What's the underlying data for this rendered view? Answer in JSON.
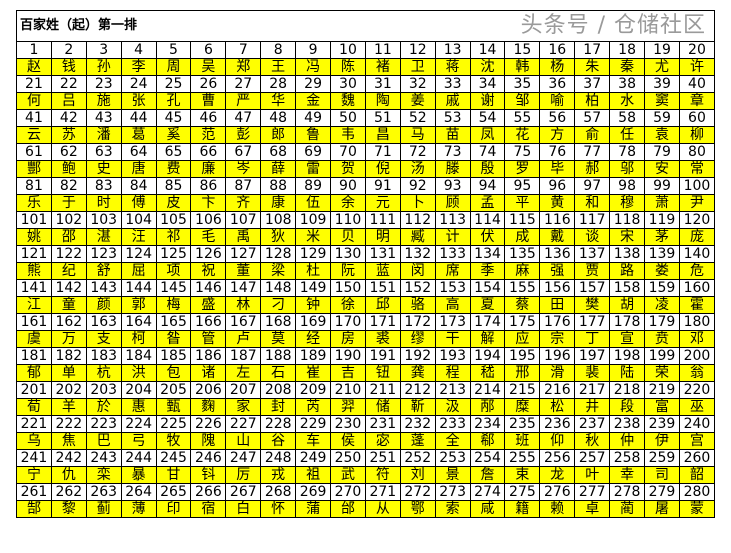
{
  "title": "百家姓（起）第一排",
  "highlight_color": "#ffff00",
  "watermark": "头条号 / 仓储社区",
  "rows": [
    {
      "numbers": [
        1,
        2,
        3,
        4,
        5,
        6,
        7,
        8,
        9,
        10,
        11,
        12,
        13,
        14,
        15,
        16,
        17,
        18,
        19,
        20
      ],
      "names": [
        "赵",
        "钱",
        "孙",
        "李",
        "周",
        "吴",
        "郑",
        "王",
        "冯",
        "陈",
        "褚",
        "卫",
        "蒋",
        "沈",
        "韩",
        "杨",
        "朱",
        "秦",
        "尤",
        "许"
      ]
    },
    {
      "numbers": [
        21,
        22,
        23,
        24,
        25,
        26,
        27,
        28,
        29,
        30,
        31,
        32,
        33,
        34,
        35,
        36,
        37,
        38,
        39,
        40
      ],
      "names": [
        "何",
        "吕",
        "施",
        "张",
        "孔",
        "曹",
        "严",
        "华",
        "金",
        "魏",
        "陶",
        "姜",
        "戚",
        "谢",
        "邹",
        "喻",
        "柏",
        "水",
        "窦",
        "章"
      ]
    },
    {
      "numbers": [
        41,
        42,
        43,
        44,
        45,
        46,
        47,
        48,
        49,
        50,
        51,
        52,
        53,
        54,
        55,
        56,
        57,
        58,
        59,
        60
      ],
      "names": [
        "云",
        "苏",
        "潘",
        "葛",
        "奚",
        "范",
        "彭",
        "郎",
        "鲁",
        "韦",
        "昌",
        "马",
        "苗",
        "凤",
        "花",
        "方",
        "俞",
        "任",
        "袁",
        "柳"
      ]
    },
    {
      "numbers": [
        61,
        62,
        63,
        64,
        65,
        66,
        67,
        68,
        69,
        70,
        71,
        72,
        73,
        74,
        75,
        76,
        77,
        78,
        79,
        80
      ],
      "names": [
        "酆",
        "鲍",
        "史",
        "唐",
        "费",
        "廉",
        "岑",
        "薛",
        "雷",
        "贺",
        "倪",
        "汤",
        "滕",
        "殷",
        "罗",
        "毕",
        "郝",
        "邬",
        "安",
        "常"
      ]
    },
    {
      "numbers": [
        81,
        82,
        83,
        84,
        85,
        86,
        87,
        88,
        89,
        90,
        91,
        92,
        93,
        94,
        95,
        96,
        97,
        98,
        99,
        100
      ],
      "names": [
        "乐",
        "于",
        "时",
        "傅",
        "皮",
        "卞",
        "齐",
        "康",
        "伍",
        "余",
        "元",
        "卜",
        "顾",
        "孟",
        "平",
        "黄",
        "和",
        "穆",
        "萧",
        "尹"
      ]
    },
    {
      "numbers": [
        101,
        102,
        103,
        104,
        105,
        106,
        107,
        108,
        109,
        110,
        111,
        112,
        113,
        114,
        115,
        116,
        117,
        118,
        119,
        120
      ],
      "names": [
        "姚",
        "邵",
        "湛",
        "汪",
        "祁",
        "毛",
        "禹",
        "狄",
        "米",
        "贝",
        "明",
        "臧",
        "计",
        "伏",
        "成",
        "戴",
        "谈",
        "宋",
        "茅",
        "庞"
      ]
    },
    {
      "numbers": [
        121,
        122,
        123,
        124,
        125,
        126,
        127,
        128,
        129,
        130,
        131,
        132,
        133,
        134,
        135,
        136,
        137,
        138,
        139,
        140
      ],
      "names": [
        "熊",
        "纪",
        "舒",
        "屈",
        "项",
        "祝",
        "董",
        "梁",
        "杜",
        "阮",
        "蓝",
        "闵",
        "席",
        "季",
        "麻",
        "强",
        "贾",
        "路",
        "娄",
        "危"
      ]
    },
    {
      "numbers": [
        141,
        142,
        143,
        144,
        145,
        146,
        147,
        148,
        149,
        150,
        151,
        152,
        153,
        154,
        155,
        156,
        157,
        158,
        159,
        160
      ],
      "names": [
        "江",
        "童",
        "颜",
        "郭",
        "梅",
        "盛",
        "林",
        "刁",
        "钟",
        "徐",
        "邱",
        "骆",
        "高",
        "夏",
        "蔡",
        "田",
        "樊",
        "胡",
        "凌",
        "霍"
      ]
    },
    {
      "numbers": [
        161,
        162,
        163,
        164,
        165,
        166,
        167,
        168,
        169,
        170,
        171,
        172,
        173,
        174,
        175,
        176,
        177,
        178,
        179,
        180
      ],
      "names": [
        "虞",
        "万",
        "支",
        "柯",
        "昝",
        "管",
        "卢",
        "莫",
        "经",
        "房",
        "裘",
        "缪",
        "干",
        "解",
        "应",
        "宗",
        "丁",
        "宣",
        "贲",
        "邓"
      ]
    },
    {
      "numbers": [
        181,
        182,
        183,
        184,
        185,
        186,
        187,
        188,
        189,
        190,
        191,
        192,
        193,
        194,
        195,
        196,
        197,
        198,
        199,
        200
      ],
      "names": [
        "郁",
        "单",
        "杭",
        "洪",
        "包",
        "诸",
        "左",
        "石",
        "崔",
        "吉",
        "钮",
        "龚",
        "程",
        "嵇",
        "邢",
        "滑",
        "裴",
        "陆",
        "荣",
        "翁"
      ]
    },
    {
      "numbers": [
        201,
        202,
        203,
        204,
        205,
        206,
        207,
        208,
        209,
        210,
        211,
        212,
        213,
        214,
        215,
        216,
        217,
        218,
        219,
        220
      ],
      "names": [
        "荀",
        "羊",
        "於",
        "惠",
        "甄",
        "麴",
        "家",
        "封",
        "芮",
        "羿",
        "储",
        "靳",
        "汲",
        "邴",
        "糜",
        "松",
        "井",
        "段",
        "富",
        "巫"
      ]
    },
    {
      "numbers": [
        221,
        222,
        223,
        224,
        225,
        226,
        227,
        228,
        229,
        230,
        231,
        232,
        233,
        234,
        235,
        236,
        237,
        238,
        239,
        240
      ],
      "names": [
        "乌",
        "焦",
        "巴",
        "弓",
        "牧",
        "隗",
        "山",
        "谷",
        "车",
        "侯",
        "宓",
        "蓬",
        "全",
        "郗",
        "班",
        "仰",
        "秋",
        "仲",
        "伊",
        "宫"
      ]
    },
    {
      "numbers": [
        241,
        242,
        243,
        244,
        245,
        246,
        247,
        248,
        249,
        250,
        251,
        252,
        253,
        254,
        255,
        256,
        257,
        258,
        259,
        260
      ],
      "names": [
        "宁",
        "仇",
        "栾",
        "暴",
        "甘",
        "钭",
        "厉",
        "戎",
        "祖",
        "武",
        "符",
        "刘",
        "景",
        "詹",
        "束",
        "龙",
        "叶",
        "幸",
        "司",
        "韶"
      ]
    },
    {
      "numbers": [
        261,
        262,
        263,
        264,
        265,
        266,
        267,
        268,
        269,
        270,
        271,
        272,
        273,
        274,
        275,
        276,
        277,
        278,
        279,
        280
      ],
      "names": [
        "郜",
        "黎",
        "蓟",
        "薄",
        "印",
        "宿",
        "白",
        "怀",
        "蒲",
        "邰",
        "从",
        "鄂",
        "索",
        "咸",
        "籍",
        "赖",
        "卓",
        "蔺",
        "屠",
        "蒙"
      ]
    }
  ]
}
